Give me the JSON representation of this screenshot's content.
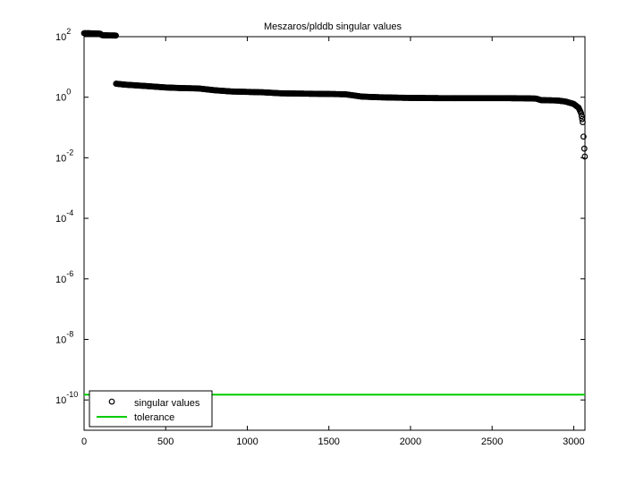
{
  "chart_data": {
    "type": "scatter",
    "title": "Meszaros/plddb singular values",
    "xlabel": "",
    "ylabel": "",
    "x_range": [
      0,
      3069
    ],
    "y_scale": "log",
    "y_exponent_range": [
      -11,
      2
    ],
    "x_ticks": [
      0,
      500,
      1000,
      1500,
      2000,
      2500,
      3000
    ],
    "y_ticks": [
      {
        "base": "10",
        "exp": "2",
        "value": 100
      },
      {
        "base": "10",
        "exp": "0",
        "value": 1
      },
      {
        "base": "10",
        "exp": "-2",
        "value": 0.01
      },
      {
        "base": "10",
        "exp": "-4",
        "value": 0.0001
      },
      {
        "base": "10",
        "exp": "-6",
        "value": 1e-06
      },
      {
        "base": "10",
        "exp": "-8",
        "value": 1e-08
      },
      {
        "base": "10",
        "exp": "-10",
        "value": 1e-10
      }
    ],
    "grid": false,
    "legend_position": "bottom-left",
    "series": [
      {
        "name": "singular values",
        "marker": "circle-open",
        "color": "#000000",
        "points": [
          [
            0,
            130
          ],
          [
            60,
            129
          ],
          [
            100,
            125
          ],
          [
            110,
            112
          ],
          [
            150,
            110
          ],
          [
            195,
            109
          ],
          [
            196,
            2.8
          ],
          [
            250,
            2.6
          ],
          [
            300,
            2.5
          ],
          [
            400,
            2.3
          ],
          [
            500,
            2.1
          ],
          [
            600,
            2.0
          ],
          [
            700,
            1.95
          ],
          [
            800,
            1.7
          ],
          [
            900,
            1.55
          ],
          [
            1000,
            1.5
          ],
          [
            1100,
            1.45
          ],
          [
            1200,
            1.35
          ],
          [
            1300,
            1.32
          ],
          [
            1400,
            1.3
          ],
          [
            1500,
            1.28
          ],
          [
            1600,
            1.25
          ],
          [
            1650,
            1.15
          ],
          [
            1700,
            1.05
          ],
          [
            1800,
            1.0
          ],
          [
            1900,
            0.97
          ],
          [
            2000,
            0.95
          ],
          [
            2100,
            0.94
          ],
          [
            2200,
            0.93
          ],
          [
            2300,
            0.93
          ],
          [
            2400,
            0.93
          ],
          [
            2500,
            0.93
          ],
          [
            2600,
            0.93
          ],
          [
            2700,
            0.92
          ],
          [
            2770,
            0.9
          ],
          [
            2800,
            0.8
          ],
          [
            2900,
            0.78
          ],
          [
            2950,
            0.72
          ],
          [
            3000,
            0.6
          ],
          [
            3030,
            0.45
          ],
          [
            3045,
            0.3
          ],
          [
            3055,
            0.15
          ],
          [
            3060,
            0.05
          ],
          [
            3065,
            0.02
          ],
          [
            3068,
            0.011
          ]
        ]
      },
      {
        "name": "tolerance",
        "marker": "line",
        "color": "#00cc00",
        "points": [
          [
            0,
            1.5e-10
          ],
          [
            3069,
            1.5e-10
          ]
        ]
      }
    ]
  }
}
